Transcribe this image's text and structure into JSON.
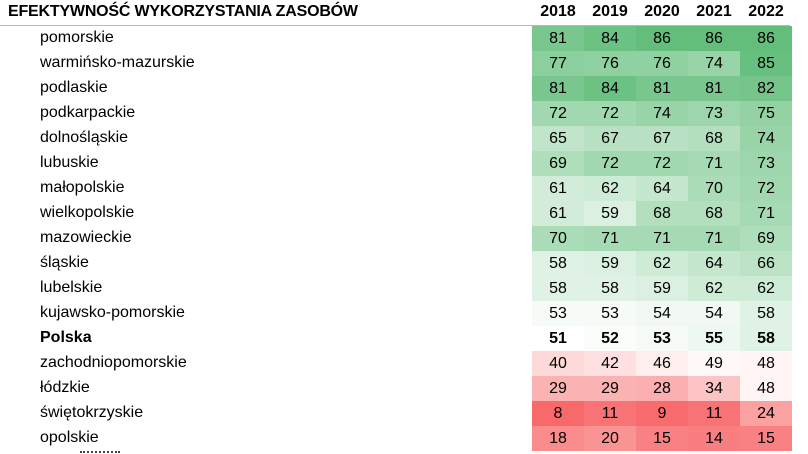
{
  "title": "EFEKTYWNOŚĆ WYKORZYSTANIA ZASOBÓW",
  "colors": {
    "high": "#63be7b",
    "mid": "#ffffff",
    "low": "#f8696b",
    "gridline": "#b9b9b9"
  },
  "chart_data": {
    "type": "heatmap",
    "title": "EFEKTYWNOŚĆ WYKORZYSTANIA ZASOBÓW",
    "columns": [
      "2018",
      "2019",
      "2020",
      "2021",
      "2022"
    ],
    "rows": [
      {
        "name": "pomorskie",
        "values": [
          81,
          84,
          86,
          86,
          86
        ]
      },
      {
        "name": "warmińsko-mazurskie",
        "values": [
          77,
          76,
          76,
          74,
          85
        ]
      },
      {
        "name": "podlaskie",
        "values": [
          81,
          84,
          81,
          81,
          82
        ]
      },
      {
        "name": "podkarpackie",
        "values": [
          72,
          72,
          74,
          73,
          75
        ]
      },
      {
        "name": "dolnośląskie",
        "values": [
          65,
          67,
          67,
          68,
          74
        ]
      },
      {
        "name": "lubuskie",
        "values": [
          69,
          72,
          72,
          71,
          73
        ]
      },
      {
        "name": "małopolskie",
        "values": [
          61,
          62,
          64,
          70,
          72
        ]
      },
      {
        "name": "wielkopolskie",
        "values": [
          61,
          59,
          68,
          68,
          71
        ]
      },
      {
        "name": "mazowieckie",
        "values": [
          70,
          71,
          71,
          71,
          69
        ]
      },
      {
        "name": "śląskie",
        "values": [
          58,
          59,
          62,
          64,
          66
        ]
      },
      {
        "name": "lubelskie",
        "values": [
          58,
          58,
          59,
          62,
          62
        ]
      },
      {
        "name": "kujawsko-pomorskie",
        "values": [
          53,
          53,
          54,
          54,
          58
        ]
      },
      {
        "name": "Polska",
        "values": [
          51,
          52,
          53,
          55,
          58
        ],
        "bold": true
      },
      {
        "name": "zachodniopomorskie",
        "values": [
          40,
          42,
          46,
          49,
          48
        ]
      },
      {
        "name": "łódzkie",
        "values": [
          29,
          29,
          28,
          34,
          48
        ]
      },
      {
        "name": "świętokrzyskie",
        "values": [
          8,
          11,
          9,
          11,
          24
        ]
      },
      {
        "name": "opolskie",
        "values": [
          18,
          20,
          15,
          14,
          15
        ]
      }
    ],
    "color_scale": {
      "min_value": 8,
      "mid_value": 51,
      "max_value": 86
    }
  }
}
